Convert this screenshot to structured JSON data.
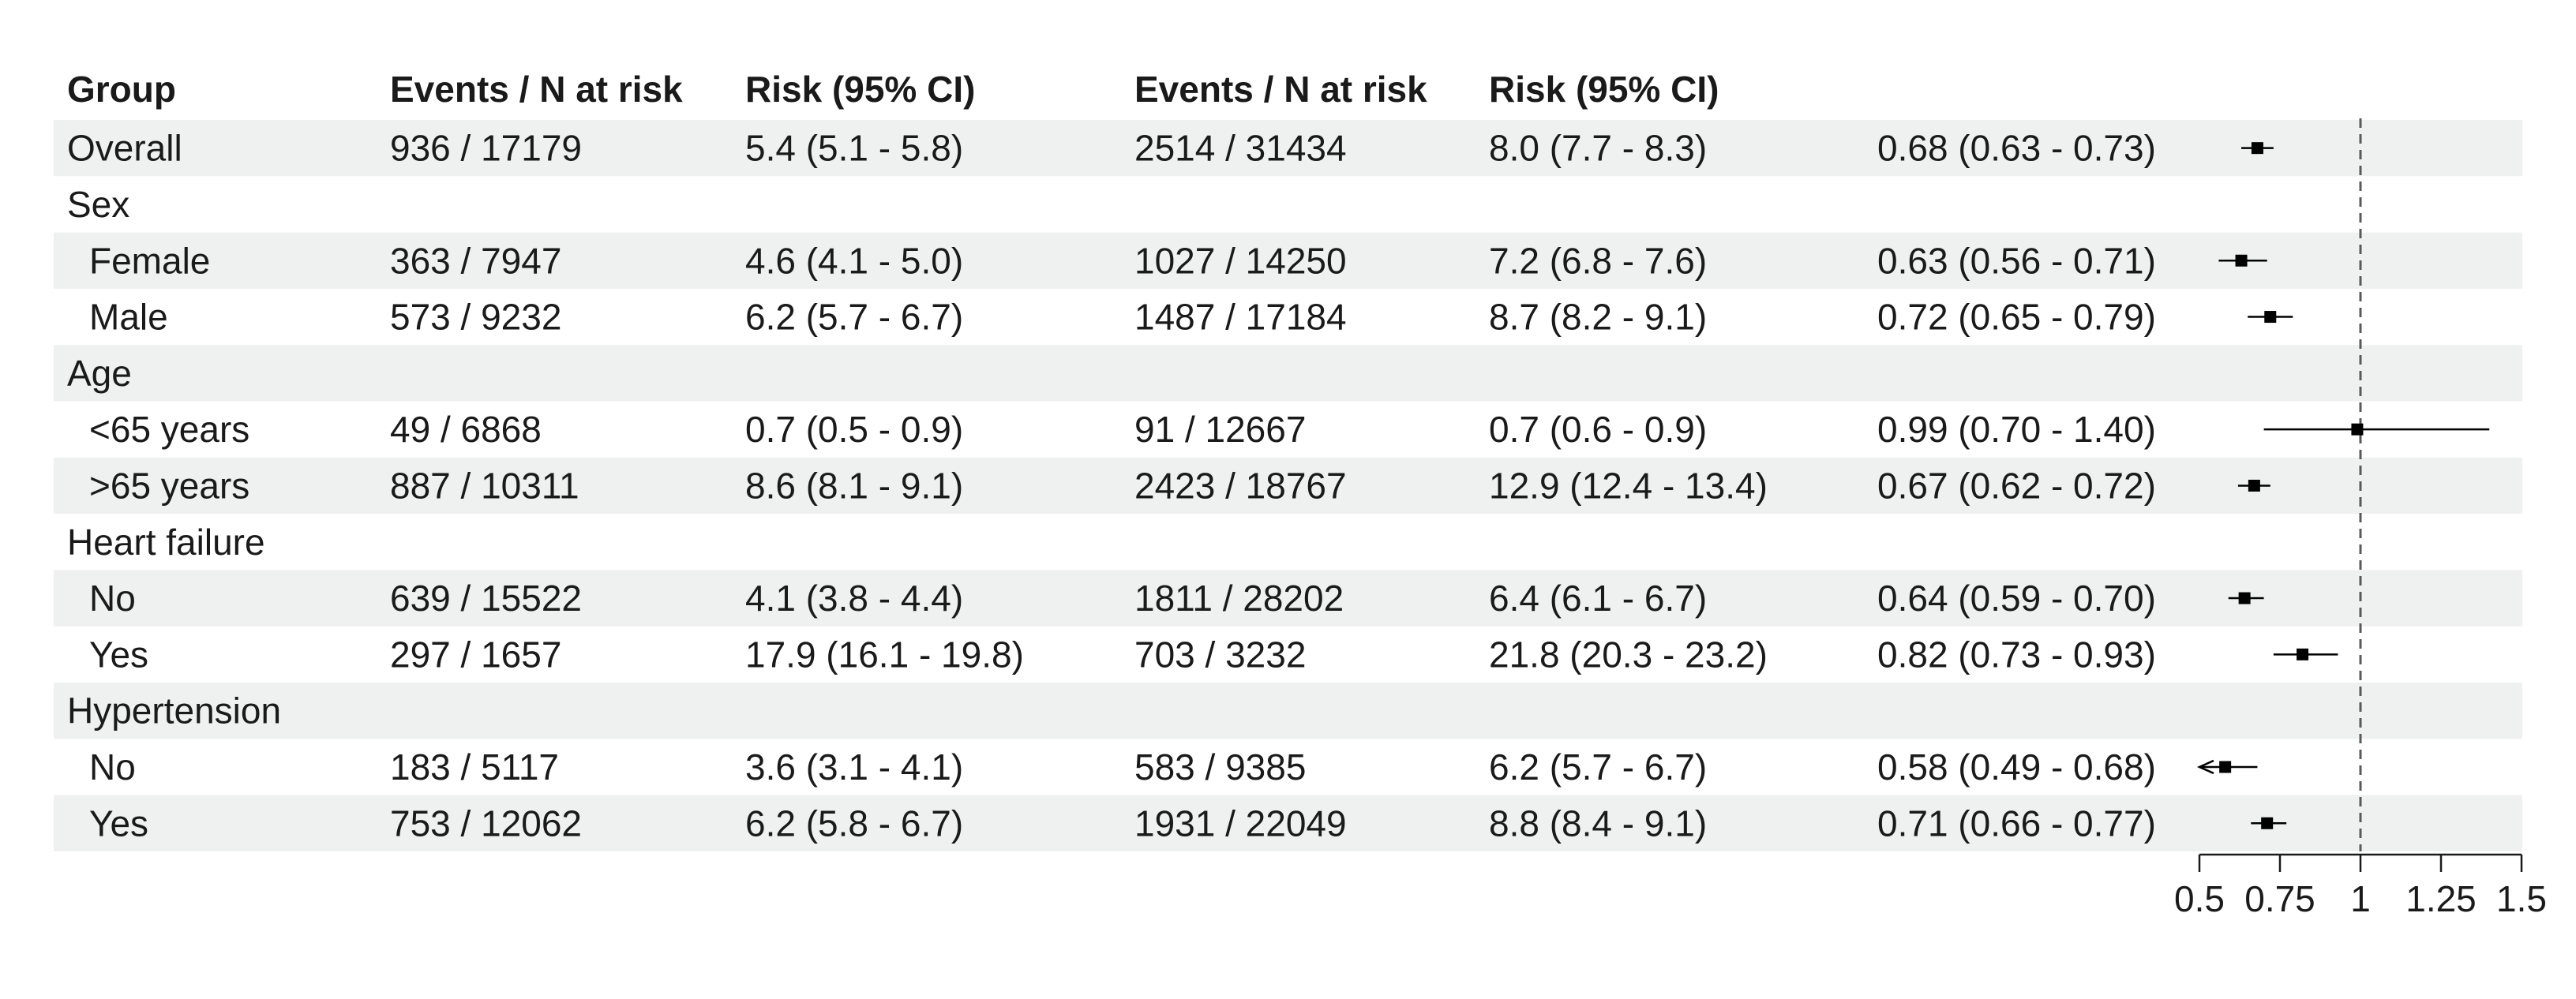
{
  "colors": {
    "stripe": "#eff0f0",
    "text": "#1a1a1a",
    "mark": "#000000",
    "ref_line": "#595959"
  },
  "headers": [
    "Group",
    "Events / N at risk",
    "Risk (95% CI)",
    "Events / N at risk",
    "Risk (95% CI)"
  ],
  "chart_data": {
    "type": "forest",
    "xlim": [
      0.5,
      1.5
    ],
    "reference_line": 1,
    "xticks": [
      {
        "value": 0.5,
        "label": "0.5"
      },
      {
        "value": 0.75,
        "label": "0.75"
      },
      {
        "value": 1,
        "label": "1"
      },
      {
        "value": 1.25,
        "label": "1.25"
      },
      {
        "value": 1.5,
        "label": "1.5"
      }
    ],
    "rows": [
      {
        "group": "Overall",
        "indent": false,
        "shaded": true,
        "events1": "936 / 17179",
        "risk1": "5.4 (5.1 - 5.8)",
        "events2": "2514 / 31434",
        "risk2": "8.0 (7.7 - 8.3)",
        "est_text": "0.68 (0.63 - 0.73)",
        "est": 0.68,
        "lo": 0.63,
        "hi": 0.73,
        "clipped_low": false
      },
      {
        "group": "Sex",
        "indent": false,
        "shaded": false
      },
      {
        "group": "Female",
        "indent": true,
        "shaded": true,
        "events1": "363 / 7947",
        "risk1": "4.6 (4.1 - 5.0)",
        "events2": "1027 / 14250",
        "risk2": "7.2 (6.8 - 7.6)",
        "est_text": "0.63 (0.56 - 0.71)",
        "est": 0.63,
        "lo": 0.56,
        "hi": 0.71,
        "clipped_low": false
      },
      {
        "group": "Male",
        "indent": true,
        "shaded": false,
        "events1": "573 / 9232",
        "risk1": "6.2 (5.7 - 6.7)",
        "events2": "1487 / 17184",
        "risk2": "8.7 (8.2 - 9.1)",
        "est_text": "0.72 (0.65 - 0.79)",
        "est": 0.72,
        "lo": 0.65,
        "hi": 0.79,
        "clipped_low": false
      },
      {
        "group": "Age",
        "indent": false,
        "shaded": true
      },
      {
        "group": "<65 years",
        "indent": true,
        "shaded": false,
        "events1": "49 / 6868",
        "risk1": "0.7 (0.5 - 0.9)",
        "events2": "91 / 12667",
        "risk2": "0.7 (0.6 - 0.9)",
        "est_text": "0.99 (0.70 - 1.40)",
        "est": 0.99,
        "lo": 0.7,
        "hi": 1.4,
        "clipped_low": false
      },
      {
        "group": ">65 years",
        "indent": true,
        "shaded": true,
        "events1": "887 / 10311",
        "risk1": "8.6 (8.1 - 9.1)",
        "events2": "2423 / 18767",
        "risk2": "12.9 (12.4 - 13.4)",
        "est_text": "0.67 (0.62 - 0.72)",
        "est": 0.67,
        "lo": 0.62,
        "hi": 0.72,
        "clipped_low": false
      },
      {
        "group": "Heart failure",
        "indent": false,
        "shaded": false
      },
      {
        "group": "No",
        "indent": true,
        "shaded": true,
        "events1": "639 / 15522",
        "risk1": "4.1 (3.8 - 4.4)",
        "events2": "1811 / 28202",
        "risk2": "6.4 (6.1 - 6.7)",
        "est_text": "0.64 (0.59 - 0.70)",
        "est": 0.64,
        "lo": 0.59,
        "hi": 0.7,
        "clipped_low": false
      },
      {
        "group": "Yes",
        "indent": true,
        "shaded": false,
        "events1": "297 / 1657",
        "risk1": "17.9 (16.1 - 19.8)",
        "events2": "703 / 3232",
        "risk2": "21.8 (20.3 - 23.2)",
        "est_text": "0.82 (0.73 - 0.93)",
        "est": 0.82,
        "lo": 0.73,
        "hi": 0.93,
        "clipped_low": false
      },
      {
        "group": "Hypertension",
        "indent": false,
        "shaded": true
      },
      {
        "group": "No",
        "indent": true,
        "shaded": false,
        "events1": "183 / 5117",
        "risk1": "3.6 (3.1 - 4.1)",
        "events2": "583 / 9385",
        "risk2": "6.2 (5.7 - 6.7)",
        "est_text": "0.58 (0.49 - 0.68)",
        "est": 0.58,
        "lo": 0.49,
        "hi": 0.68,
        "clipped_low": true
      },
      {
        "group": "Yes",
        "indent": true,
        "shaded": true,
        "events1": "753 / 12062",
        "risk1": "6.2 (5.8 - 6.7)",
        "events2": "1931 / 22049",
        "risk2": "8.8 (8.4 - 9.1)",
        "est_text": "0.71 (0.66 - 0.77)",
        "est": 0.71,
        "lo": 0.66,
        "hi": 0.77,
        "clipped_low": false
      }
    ]
  }
}
